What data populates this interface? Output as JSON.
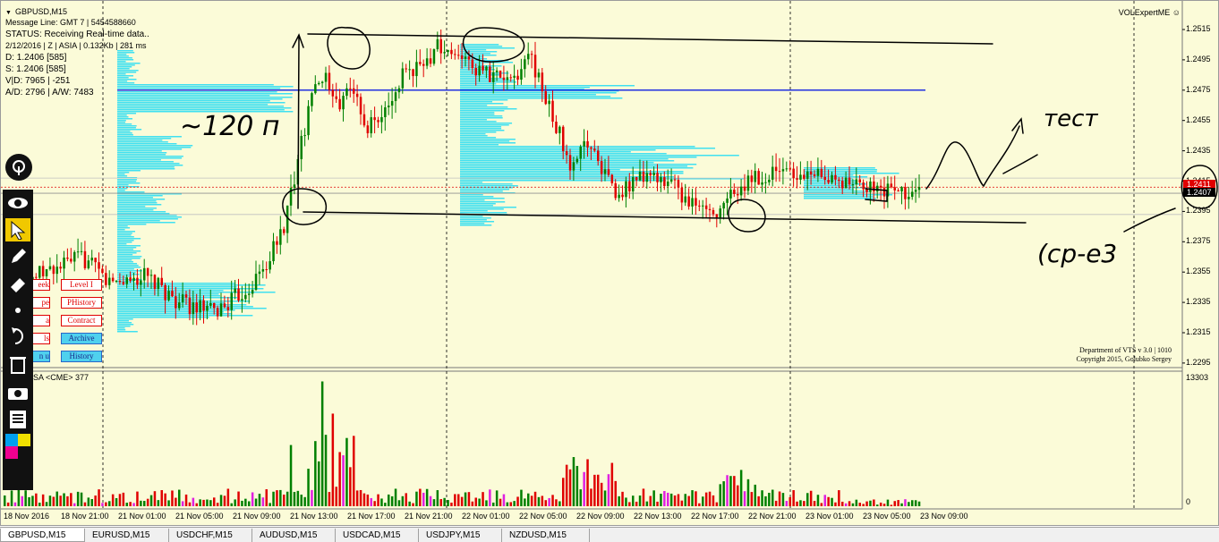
{
  "window": {
    "symbol_title": "GBPUSD,M15",
    "expert_label": "VOLExpertME",
    "info_lines": [
      "Message Line: GMT 7  |  5454588660",
      "STATUS:  Receiving Real-time data..",
      "2/12/2016  | Z | ASIA  |  0.132Kb  |  281 ms",
      "D: 1.2406  [585]",
      "S: 1.2406  [585]",
      "V|D: 7965  |  -251",
      "A/D: 2796  |  A/W: 7483"
    ],
    "vts_line1": "Department of VTS  v 3.0 | 1010",
    "vts_line2": "Copyright 2015, Golubko Sergey",
    "volume_title": "SA <CME> 377",
    "volume_max": "13303",
    "volume_zero": "0",
    "bid_tag": "1.2411",
    "ask_tag": "1.2407",
    "colors": {
      "up": "#008000",
      "down": "#e00000",
      "profile": "#40e0f0",
      "background": "#fbfbd8"
    }
  },
  "buttons_left": [
    {
      "label": "eek",
      "style": "red"
    },
    {
      "label": "pe",
      "style": "red"
    },
    {
      "label": "a",
      "style": "red"
    },
    {
      "label": "ls",
      "style": "red"
    },
    {
      "label": "n u",
      "style": "blue"
    }
  ],
  "buttons_right": [
    {
      "label": "Level I",
      "style": "red"
    },
    {
      "label": "PHistory",
      "style": "red"
    },
    {
      "label": "Contract",
      "style": "red"
    },
    {
      "label": "Archive",
      "style": "blue"
    },
    {
      "label": "History",
      "style": "blue"
    }
  ],
  "toolbar": {
    "icons": [
      "pin-icon",
      "eye-icon",
      "cursor-icon",
      "pencil-icon",
      "eraser-icon",
      "dot-icon",
      "undo-icon",
      "trash-icon",
      "camera-icon",
      "list-icon",
      "palette-icon"
    ]
  },
  "annotations": {
    "range_text": "~120 п",
    "test_text": "тест",
    "wed_text": "(ср-е3"
  },
  "tabs": [
    "GBPUSD,M15",
    "EURUSD,M15",
    "USDCHF,M15",
    "AUDUSD,M15",
    "USDCAD,M15",
    "USDJPY,M15",
    "NZDUSD,M15"
  ],
  "chart_data": {
    "type": "candlestick",
    "symbol": "GBPUSD",
    "timeframe": "M15",
    "price_ticks": [
      "1.2515",
      "1.2495",
      "1.2475",
      "1.2455",
      "1.2435",
      "1.2415",
      "1.2395",
      "1.2375",
      "1.2355",
      "1.2335",
      "1.2315",
      "1.2295"
    ],
    "price_range": [
      1.229,
      1.2521
    ],
    "time_ticks": [
      "18 Nov 2016",
      "18 Nov 21:00",
      "21 Nov 01:00",
      "21 Nov 05:00",
      "21 Nov 09:00",
      "21 Nov 13:00",
      "21 Nov 17:00",
      "21 Nov 21:00",
      "22 Nov 01:00",
      "22 Nov 05:00",
      "22 Nov 09:00",
      "22 Nov 13:00",
      "22 Nov 17:00",
      "22 Nov 21:00",
      "23 Nov 01:00",
      "23 Nov 05:00",
      "23 Nov 09:00"
    ],
    "close_path": [
      [
        0,
        1.2345
      ],
      [
        12,
        1.2355
      ],
      [
        22,
        1.2365
      ],
      [
        30,
        1.2348
      ],
      [
        40,
        1.2352
      ],
      [
        50,
        1.2335
      ],
      [
        60,
        1.2328
      ],
      [
        70,
        1.2345
      ],
      [
        75,
        1.236
      ],
      [
        80,
        1.2385
      ],
      [
        85,
        1.244
      ],
      [
        88,
        1.247
      ],
      [
        92,
        1.2485
      ],
      [
        96,
        1.2468
      ],
      [
        100,
        1.2475
      ],
      [
        104,
        1.245
      ],
      [
        110,
        1.246
      ],
      [
        115,
        1.249
      ],
      [
        120,
        1.2488
      ],
      [
        124,
        1.2505
      ],
      [
        128,
        1.25
      ],
      [
        132,
        1.2492
      ],
      [
        138,
        1.2485
      ],
      [
        145,
        1.248
      ],
      [
        150,
        1.2498
      ],
      [
        155,
        1.247
      ],
      [
        160,
        1.244
      ],
      [
        162,
        1.242
      ],
      [
        166,
        1.2445
      ],
      [
        170,
        1.2425
      ],
      [
        176,
        1.2405
      ],
      [
        180,
        1.2415
      ],
      [
        186,
        1.242
      ],
      [
        192,
        1.241
      ],
      [
        198,
        1.24
      ],
      [
        205,
        1.2395
      ],
      [
        210,
        1.241
      ],
      [
        216,
        1.2418
      ],
      [
        222,
        1.242
      ],
      [
        228,
        1.2418
      ],
      [
        234,
        1.242
      ],
      [
        240,
        1.2415
      ],
      [
        246,
        1.2412
      ],
      [
        252,
        1.2408
      ],
      [
        258,
        1.2406
      ],
      [
        262,
        1.2407
      ]
    ],
    "volume_max": 13303,
    "key_levels": [
      {
        "name": "blue level",
        "price": 1.2475
      },
      {
        "name": "bid",
        "price": 1.2411
      },
      {
        "name": "ask",
        "price": 1.2407
      }
    ]
  }
}
